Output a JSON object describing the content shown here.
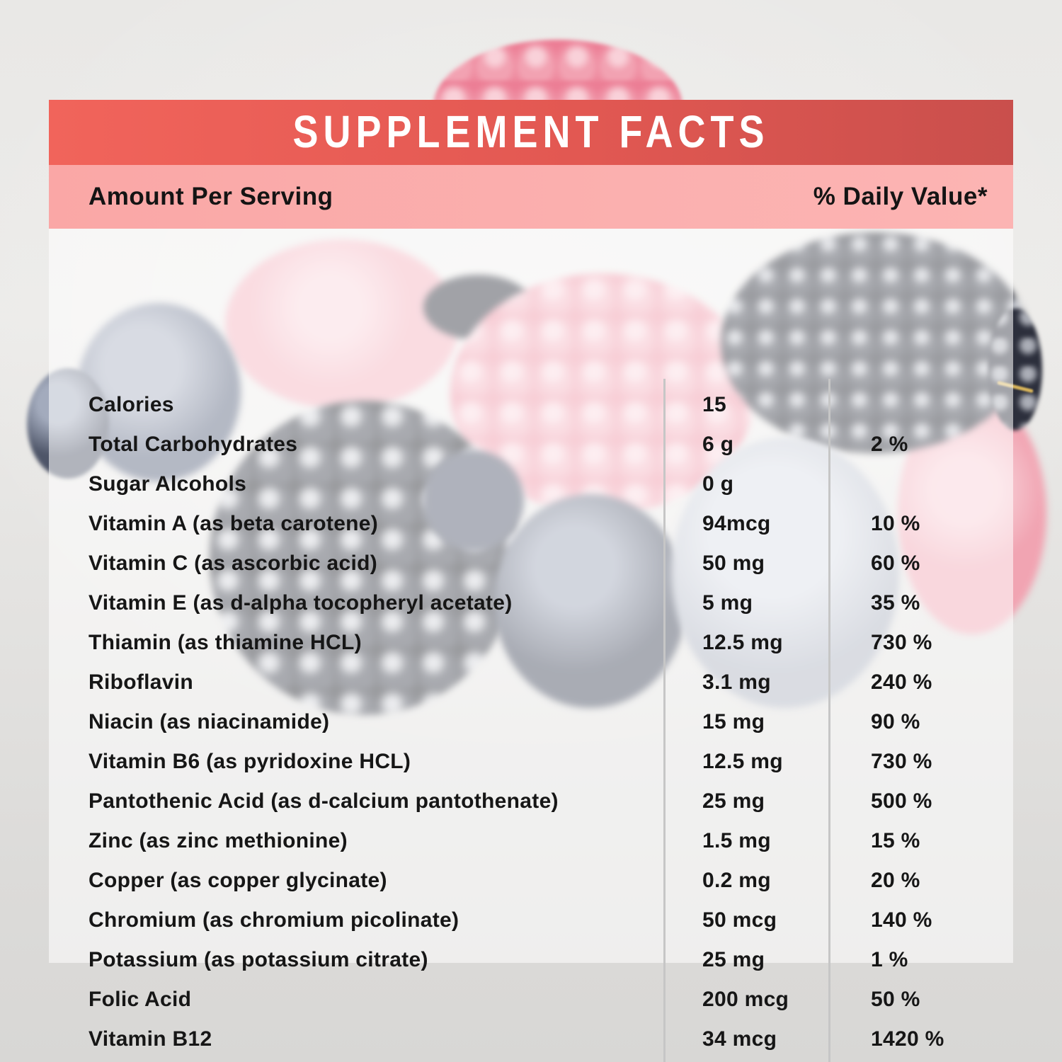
{
  "label": {
    "title": "SUPPLEMENT FACTS",
    "columns": {
      "amount_header": "Amount Per Serving",
      "dv_header": "% Daily Value*"
    },
    "rows": [
      {
        "name": "Calories",
        "amount": "15",
        "dv": ""
      },
      {
        "name": "Total Carbohydrates",
        "amount": "6 g",
        "dv": "2 %"
      },
      {
        "name": "Sugar Alcohols",
        "amount": "0 g",
        "dv": ""
      },
      {
        "name": "Vitamin A (as beta carotene)",
        "amount": "94mcg",
        "dv": "10 %"
      },
      {
        "name": "Vitamin C (as ascorbic acid)",
        "amount": "50 mg",
        "dv": "60 %"
      },
      {
        "name": "Vitamin E (as d-alpha tocopheryl acetate)",
        "amount": "5 mg",
        "dv": "35 %"
      },
      {
        "name": "Thiamin (as thiamine HCL)",
        "amount": "12.5 mg",
        "dv": "730 %"
      },
      {
        "name": "Riboflavin",
        "amount": "3.1 mg",
        "dv": "240 %"
      },
      {
        "name": "Niacin (as niacinamide)",
        "amount": "15 mg",
        "dv": "90 %"
      },
      {
        "name": "Vitamin B6 (as pyridoxine HCL)",
        "amount": "12.5 mg",
        "dv": "730 %"
      },
      {
        "name": "Pantothenic Acid (as d-calcium pantothenate)",
        "amount": "25 mg",
        "dv": "500 %"
      },
      {
        "name": "Zinc (as zinc methionine)",
        "amount": "1.5 mg",
        "dv": "15 %"
      },
      {
        "name": "Copper (as copper glycinate)",
        "amount": "0.2 mg",
        "dv": "20 %"
      },
      {
        "name": "Chromium (as chromium picolinate)",
        "amount": "50 mcg",
        "dv": "140 %"
      },
      {
        "name": "Potassium (as potassium citrate)",
        "amount": "25 mg",
        "dv": "1 %"
      },
      {
        "name": "Folic Acid",
        "amount": "200 mcg",
        "dv": "50 %"
      },
      {
        "name": "Vitamin B12",
        "amount": "34 mcg",
        "dv": "1420 %"
      }
    ]
  },
  "colors": {
    "header_red_left": "#f1645b",
    "header_red_right": "#c94f4c",
    "subheader_pink": "#fbb0af",
    "divider_gray": "#c6c6c6",
    "text_black": "#161616",
    "title_white": "#ffffff"
  },
  "decor": {
    "background_photo": "berries (raspberries, blueberries, blackberries) behind translucent white panel"
  }
}
